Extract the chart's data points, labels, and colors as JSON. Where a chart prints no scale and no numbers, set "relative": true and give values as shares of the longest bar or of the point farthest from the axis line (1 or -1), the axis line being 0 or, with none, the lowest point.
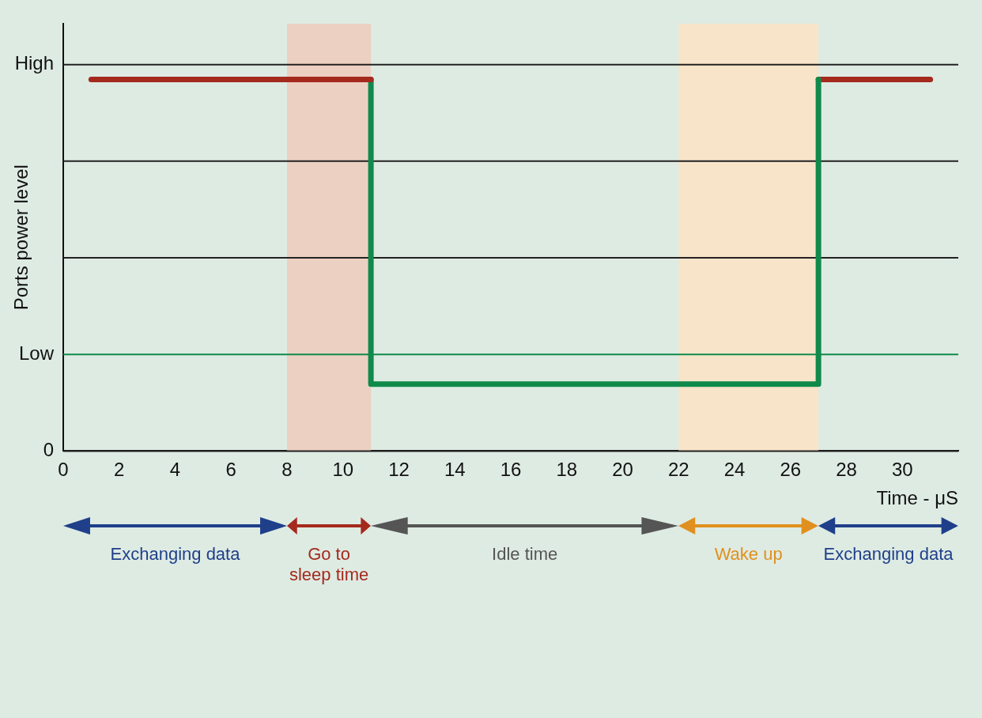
{
  "chart_data": {
    "type": "line",
    "xlabel": "Time - μS",
    "ylabel": "Ports power level",
    "xlim": [
      0,
      32
    ],
    "xticks": [
      0,
      2,
      4,
      6,
      8,
      10,
      12,
      14,
      16,
      18,
      20,
      22,
      24,
      26,
      28,
      30
    ],
    "relative": true,
    "marker": "none",
    "line_style": "solid",
    "series": [
      {
        "color": "#a52a1e",
        "x": [
          1,
          11
        ],
        "values": [
          1,
          1
        ]
      },
      {
        "color": "#0f8a4a",
        "x": [
          11,
          11,
          27,
          27
        ],
        "values": [
          1,
          0.18,
          0.18,
          1
        ]
      },
      {
        "color": "#a52a1e",
        "x": [
          27,
          31
        ],
        "values": [
          1,
          1
        ]
      }
    ],
    "ref_lines": [
      {
        "axis": "y",
        "value": 0,
        "label": "0",
        "color": "#222222"
      },
      {
        "axis": "y",
        "value": 0.26,
        "label": "Low",
        "color": "#0f8a4a"
      },
      {
        "axis": "y",
        "value": 0.52,
        "color": "#222222"
      },
      {
        "axis": "y",
        "value": 0.78,
        "color": "#222222"
      },
      {
        "axis": "y",
        "value": 1.04,
        "label": "High",
        "color": "#222222"
      }
    ],
    "bands": [
      {
        "axis": "x",
        "from": 8,
        "to": 11,
        "color": "#ecd0c2"
      },
      {
        "axis": "x",
        "from": 22,
        "to": 27,
        "color": "#f8e4c8"
      }
    ],
    "annotations": [
      "Exchanging data",
      "Go to sleep time",
      "Idle time",
      "Wake up",
      "Exchanging data"
    ]
  }
}
